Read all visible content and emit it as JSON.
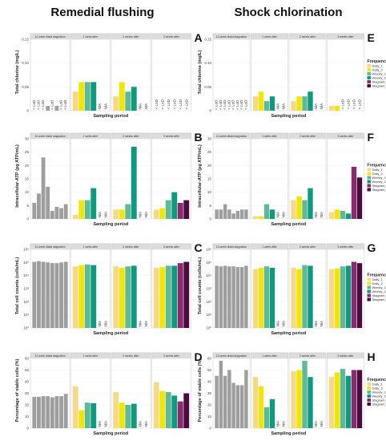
{
  "figure": {
    "col_titles": [
      "Remedial flushing",
      "Shock chlorination"
    ],
    "x_label": "Sampling period",
    "facets": [
      "12-week distal stagnation",
      "1 week after",
      "2 weeks after",
      "3 weeks after"
    ],
    "legend_title": "Frequency",
    "legend_labels": [
      "Daily_1",
      "Daily_2",
      "Weekly_1",
      "Weekly_2",
      "Stagnant_1",
      "Stagnant_2"
    ],
    "na_label": "N/A",
    "lod_label": "< LoD",
    "colors": [
      "#f5d98a",
      "#f2e600",
      "#5fb89a",
      "#0f9a80",
      "#8a2b6e",
      "#4a0c40"
    ],
    "baseline_color": "#9e9e9e"
  },
  "chart_data": [
    {
      "id": "A",
      "type": "bar",
      "ylabel": "Total chlorine (mg/L)",
      "ylim": [
        0,
        0.15
      ],
      "yticks": [
        "0",
        "0.05",
        "0.10",
        "0.15"
      ],
      "legend": false,
      "baseline": [
        0,
        0,
        0,
        0.01,
        0,
        0.01,
        0,
        0
      ],
      "periods": [
        {
          "values": [
            0.04,
            0.06,
            0.06,
            0.06,
            null,
            null
          ],
          "lod": [
            false,
            false,
            false,
            false,
            false,
            false
          ]
        },
        {
          "values": [
            0.03,
            0.06,
            0.04,
            0.05,
            null,
            null
          ],
          "lod": [
            false,
            false,
            false,
            false,
            false,
            false
          ]
        },
        {
          "values": [
            0,
            0,
            0,
            0,
            0,
            0
          ],
          "lod": [
            true,
            true,
            true,
            true,
            true,
            true
          ]
        }
      ]
    },
    {
      "id": "B",
      "type": "bar",
      "ylabel": "Intracellular-ATP (pg ATP/mL)",
      "ylim": [
        0,
        30
      ],
      "yticks": [
        "0",
        "5",
        "10",
        "15",
        "20",
        "25",
        "30"
      ],
      "legend": false,
      "baseline": [
        6,
        9.5,
        23,
        12,
        3,
        4.5,
        4,
        5.5
      ],
      "periods": [
        {
          "values": [
            1.5,
            7,
            7,
            11.5,
            null,
            null
          ]
        },
        {
          "values": [
            3.5,
            3.5,
            5.5,
            27,
            null,
            null
          ]
        },
        {
          "values": [
            3.5,
            4,
            7,
            10,
            6,
            7
          ]
        }
      ]
    },
    {
      "id": "C",
      "type": "bar",
      "ylabel": "Total cell counts (cells/mL)",
      "scale": "log",
      "ylim": [
        0,
        6
      ],
      "yticks": [
        "10⁰",
        "10¹",
        "10²",
        "10³",
        "10⁴",
        "10⁵",
        "10⁶"
      ],
      "legend": false,
      "baseline": [
        5.05,
        5.1,
        5.05,
        5.0,
        4.95,
        4.95,
        5.0,
        5.05
      ],
      "periods": [
        {
          "values": [
            4.7,
            4.8,
            4.85,
            4.8,
            null,
            null
          ]
        },
        {
          "values": [
            4.7,
            4.6,
            4.7,
            4.75,
            null,
            null
          ]
        },
        {
          "values": [
            4.6,
            4.65,
            4.75,
            4.75,
            4.95,
            5.05
          ]
        }
      ]
    },
    {
      "id": "D",
      "type": "bar",
      "ylabel": "Percentage of viable cells (%)",
      "ylim": [
        0,
        60
      ],
      "yticks": [
        "0",
        "10",
        "20",
        "30",
        "40",
        "50",
        "60"
      ],
      "legend": false,
      "baseline": [
        27,
        27,
        27.5,
        27.5,
        26.5,
        27.5,
        27.5,
        29.5
      ],
      "periods": [
        {
          "values": [
            36,
            15.5,
            22,
            21.5,
            null,
            null
          ]
        },
        {
          "values": [
            31,
            22,
            20,
            21,
            null,
            null
          ]
        },
        {
          "values": [
            39.5,
            32,
            31,
            28,
            23,
            30
          ]
        }
      ]
    },
    {
      "id": "E",
      "type": "bar",
      "ylabel": "Total chlorine (mg/L)",
      "ylim": [
        0,
        0.15
      ],
      "yticks": [
        "0",
        "0.05",
        "0.10",
        "0.15"
      ],
      "legend": true,
      "baseline": [
        0,
        0,
        0,
        0,
        0,
        0,
        0,
        0
      ],
      "periods": [
        {
          "values": [
            0.03,
            0.04,
            0.02,
            0.03,
            null,
            null
          ],
          "lod": [
            false,
            false,
            false,
            false,
            false,
            false
          ]
        },
        {
          "values": [
            0.02,
            0.03,
            0.03,
            0.04,
            null,
            null
          ],
          "lod": [
            false,
            false,
            false,
            false,
            false,
            false
          ]
        },
        {
          "values": [
            0.01,
            0.01,
            0,
            0,
            0,
            0
          ],
          "lod": [
            false,
            false,
            true,
            true,
            true,
            true
          ]
        }
      ]
    },
    {
      "id": "F",
      "type": "bar",
      "ylabel": "Intracellular-ATP (pg ATP/mL)",
      "ylim": [
        0,
        30
      ],
      "yticks": [
        "0",
        "5",
        "10",
        "15",
        "20",
        "25",
        "30"
      ],
      "legend": true,
      "baseline": [
        3.5,
        3.5,
        5.5,
        3.5,
        2,
        3,
        3.5,
        3.5
      ],
      "periods": [
        {
          "values": [
            1,
            1,
            5.5,
            3.5,
            null,
            null
          ]
        },
        {
          "values": [
            7,
            8.5,
            7,
            11.5,
            null,
            null
          ]
        },
        {
          "values": [
            2.5,
            3.5,
            3,
            2,
            19.5,
            15.5
          ]
        }
      ]
    },
    {
      "id": "G",
      "type": "bar",
      "ylabel": "Total cell counts (cells/mL)",
      "scale": "log",
      "ylim": [
        0,
        6
      ],
      "yticks": [
        "10⁰",
        "10¹",
        "10²",
        "10³",
        "10⁴",
        "10⁵",
        "10⁶"
      ],
      "legend": true,
      "baseline": [
        4.75,
        4.7,
        4.75,
        4.7,
        4.7,
        4.65,
        4.65,
        4.75
      ],
      "periods": [
        {
          "values": [
            4.5,
            4.6,
            4.7,
            4.6,
            null,
            null
          ]
        },
        {
          "values": [
            4.6,
            4.5,
            4.8,
            4.75,
            null,
            null
          ]
        },
        {
          "values": [
            4.5,
            4.55,
            4.7,
            4.75,
            5.05,
            4.95
          ]
        }
      ]
    },
    {
      "id": "H",
      "type": "bar",
      "ylabel": "Percentage of viable cells (%)",
      "ylim": [
        0,
        60
      ],
      "yticks": [
        "0",
        "10",
        "20",
        "30",
        "40",
        "50",
        "60"
      ],
      "legend": true,
      "baseline": [
        45,
        58,
        45,
        50,
        39,
        37,
        37,
        50
      ],
      "periods": [
        {
          "values": [
            44,
            36,
            18,
            25,
            null,
            null
          ]
        },
        {
          "values": [
            49,
            50,
            58,
            44,
            null,
            null
          ]
        },
        {
          "values": [
            44,
            48,
            51,
            45,
            50,
            50
          ]
        }
      ]
    }
  ]
}
